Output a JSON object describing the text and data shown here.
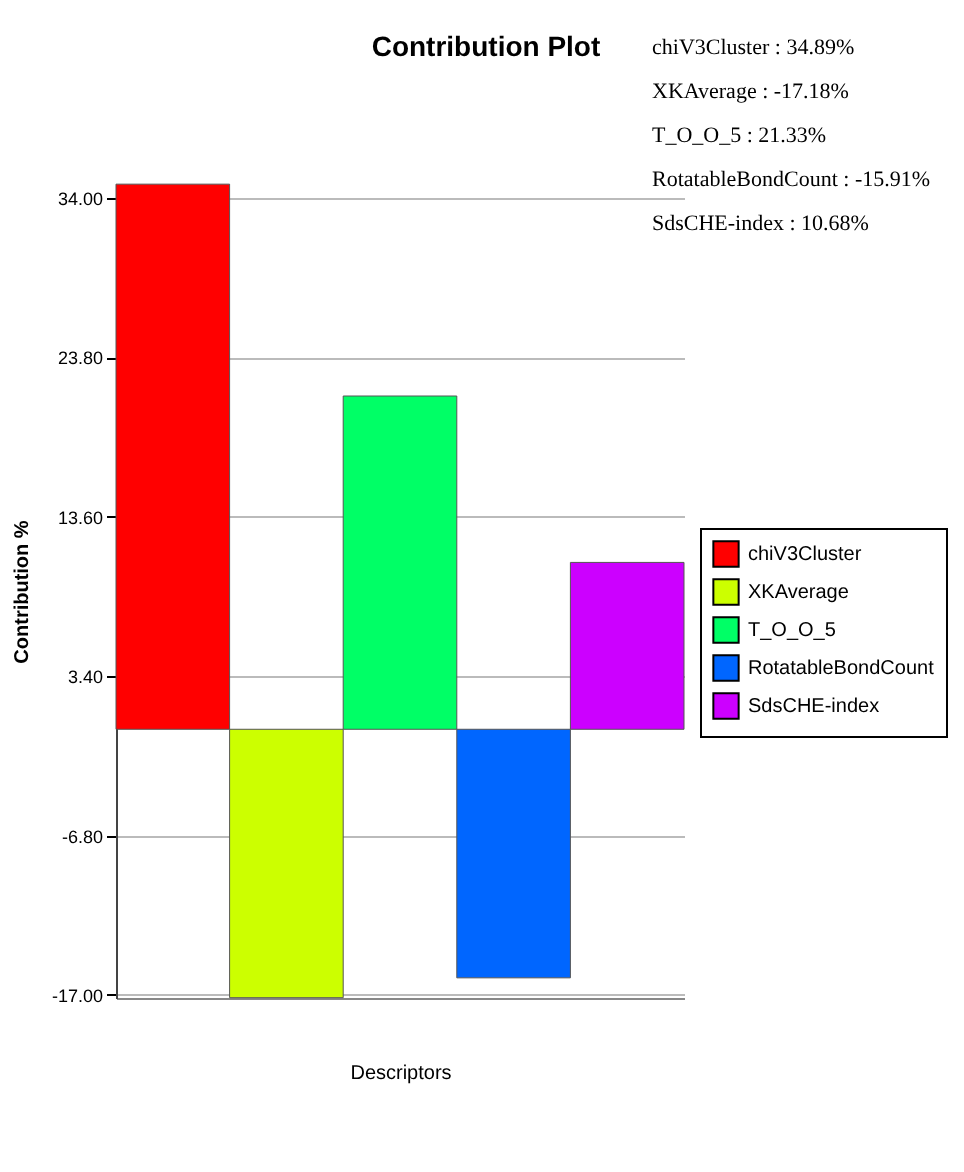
{
  "chart_data": {
    "type": "bar",
    "title": "Contribution Plot",
    "xlabel": "Descriptors",
    "ylabel": "Contribution %",
    "categories": [
      null,
      null,
      null,
      null,
      null
    ],
    "series": [
      {
        "name": "chiV3Cluster",
        "color": "#ff0000",
        "values": [
          34.89,
          null,
          null,
          null,
          null
        ]
      },
      {
        "name": "XKAverage",
        "color": "#ccff00",
        "values": [
          null,
          -17.18,
          null,
          null,
          null
        ]
      },
      {
        "name": "T_O_O_5",
        "color": "#00ff66",
        "values": [
          null,
          null,
          21.33,
          null,
          null
        ]
      },
      {
        "name": "RotatableBondCount",
        "color": "#0066ff",
        "values": [
          null,
          null,
          null,
          -15.91,
          null
        ]
      },
      {
        "name": "SdsCHE-index",
        "color": "#cc00ff",
        "values": [
          null,
          null,
          null,
          null,
          10.68
        ]
      }
    ],
    "ylim": [
      -17.2,
      34.9
    ],
    "yticks": [
      {
        "value": 34,
        "label": "34.00"
      },
      {
        "value": 23.8,
        "label": "23.80"
      },
      {
        "value": 13.6,
        "label": "13.60"
      },
      {
        "value": 3.4,
        "label": "3.40"
      },
      {
        "value": -6.8,
        "label": "-6.80"
      },
      {
        "value": -17,
        "label": "-17.00"
      }
    ],
    "grid": "y",
    "legend": "right",
    "annotations": [
      "chiV3Cluster : 34.89%",
      "XKAverage : -17.18%",
      "T_O_O_5 : 21.33%",
      "RotatableBondCount : -15.91%",
      "SdsCHE-index : 10.68%"
    ]
  }
}
